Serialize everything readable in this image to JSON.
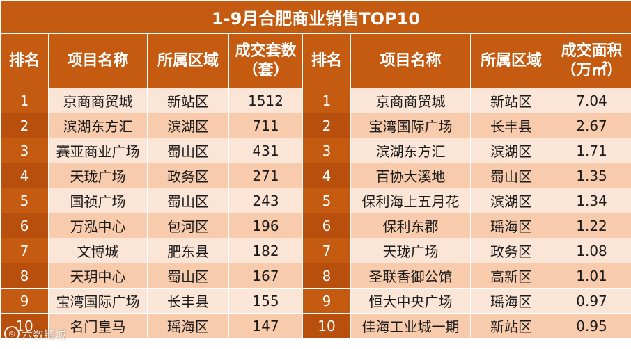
{
  "title": "1-9月合肥商业销售TOP10",
  "headers": {
    "rank_left": "排名",
    "project_left": "项目名称",
    "district_left": "所属区域",
    "volume_line1": "成交套数",
    "volume_line2": "（套）",
    "rank_right": "排名",
    "project_right": "项目名称",
    "district_right": "所属区域",
    "area_line1": "成交面积",
    "area_line2": "（万㎡）"
  },
  "left_rows": [
    {
      "rank": "1",
      "project": "京商商贸城",
      "district": "新站区",
      "value": "1512"
    },
    {
      "rank": "2",
      "project": "滨湖东方汇",
      "district": "滨湖区",
      "value": "711"
    },
    {
      "rank": "3",
      "project": "赛亚商业广场",
      "district": "蜀山区",
      "value": "431"
    },
    {
      "rank": "4",
      "project": "天珑广场",
      "district": "政务区",
      "value": "271"
    },
    {
      "rank": "5",
      "project": "国祯广场",
      "district": "蜀山区",
      "value": "243"
    },
    {
      "rank": "6",
      "project": "万泓中心",
      "district": "包河区",
      "value": "196"
    },
    {
      "rank": "7",
      "project": "文博城",
      "district": "肥东县",
      "value": "182"
    },
    {
      "rank": "8",
      "project": "天玥中心",
      "district": "蜀山区",
      "value": "167"
    },
    {
      "rank": "9",
      "project": "宝湾国际广场",
      "district": "长丰县",
      "value": "155"
    },
    {
      "rank": "10",
      "project": "名门皇马",
      "district": "瑶海区",
      "value": "147"
    }
  ],
  "right_rows": [
    {
      "rank": "1",
      "project": "京商商贸城",
      "district": "新站区",
      "value": "7.04"
    },
    {
      "rank": "2",
      "project": "宝湾国际广场",
      "district": "长丰县",
      "value": "2.67"
    },
    {
      "rank": "3",
      "project": "滨湖东方汇",
      "district": "滨湖区",
      "value": "1.71"
    },
    {
      "rank": "4",
      "project": "百协大溪地",
      "district": "蜀山区",
      "value": "1.35"
    },
    {
      "rank": "5",
      "project": "保利海上五月花",
      "district": "滨湖区",
      "value": "1.34"
    },
    {
      "rank": "6",
      "project": "保利东郡",
      "district": "瑶海区",
      "value": "1.22"
    },
    {
      "rank": "7",
      "project": "天珑广场",
      "district": "政务区",
      "value": "1.08"
    },
    {
      "rank": "8",
      "project": "圣联香御公馆",
      "district": "高新区",
      "value": "1.01"
    },
    {
      "rank": "9",
      "project": "恒大中央广场",
      "district": "瑶海区",
      "value": "0.97"
    },
    {
      "rank": "10",
      "project": "佳海工业城一期",
      "district": "新站区",
      "value": "0.95"
    }
  ],
  "watermark": "六数链城",
  "colors": {
    "header_bg": "#c55a11",
    "row_bg": "#fbe5d6",
    "row_alt_bg": "#f8cbad"
  }
}
